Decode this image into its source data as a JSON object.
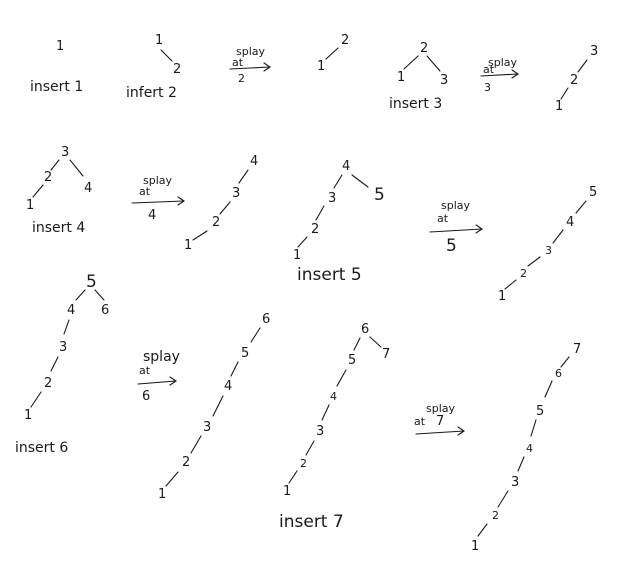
{
  "labels": {
    "insert_1": "insert 1",
    "insert_2": "infert 2",
    "insert_3": "insert 3",
    "insert_4": "insert 4",
    "insert_5": "insert 5",
    "insert_6": "insert 6",
    "insert_7": "insert 7"
  },
  "arrows": {
    "a2": {
      "word1": "splay",
      "word2": "at",
      "num": "2"
    },
    "a3": {
      "word1": "splay",
      "word2": "at",
      "num": "3"
    },
    "a4": {
      "word1": "splay",
      "word2": "at",
      "num": "4"
    },
    "a5": {
      "word1": "splay",
      "word2": "at",
      "num": "5"
    },
    "a6": {
      "word1": "splay",
      "word2": "at",
      "num": "6"
    },
    "a7": {
      "word1": "splay",
      "word2": "at",
      "num": "7"
    }
  },
  "nodes": {
    "n1": "1",
    "n2": "2",
    "n3": "3",
    "n4": "4",
    "n5": "5",
    "n6": "6",
    "n7": "7"
  }
}
